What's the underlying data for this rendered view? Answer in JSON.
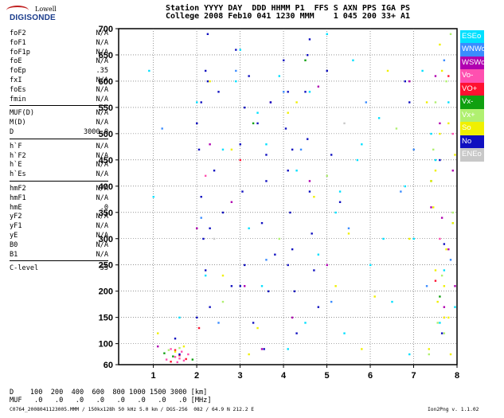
{
  "logo": {
    "line1": "Lowell",
    "line2": "DIGISONDE"
  },
  "header": {
    "row1": "Station YYYY DAY  DDD HHMM P1  FFS S AXN PPS IGA PS",
    "row2": "College 2008 Feb10 041 1230 MMM    1 045 200 33+ A1"
  },
  "params": {
    "g1": [
      [
        "foF2",
        "N/A"
      ],
      [
        "foF1",
        "N/A"
      ],
      [
        "foF1p",
        "N/A"
      ],
      [
        "foE",
        "N/A"
      ],
      [
        "foEp",
        ".35"
      ],
      [
        "fxI",
        "N/A"
      ],
      [
        "foEs",
        "N/A"
      ],
      [
        "fmin",
        "N/A"
      ]
    ],
    "g2": [
      [
        "MUF(D)",
        "N/A"
      ],
      [
        "M(D)",
        "N/A"
      ],
      [
        "D",
        "3000.0"
      ]
    ],
    "g3": [
      [
        "h`F",
        "N/A"
      ],
      [
        "h`F2",
        "N/A"
      ],
      [
        "h`E",
        "N/A"
      ],
      [
        "h`Es",
        "N/A"
      ]
    ],
    "g4": [
      [
        "hmF2",
        "N/A"
      ],
      [
        "hmF1",
        "N/A"
      ],
      [
        "hmE",
        ".0"
      ],
      [
        "yF2",
        "N/A"
      ],
      [
        "yF1",
        "N/A"
      ],
      [
        "yE",
        "N/A"
      ],
      [
        "B0",
        "N/A"
      ],
      [
        "B1",
        "N/A"
      ]
    ],
    "g5": [
      [
        "C-level",
        "55"
      ]
    ]
  },
  "legend": [
    {
      "label": "ESEo",
      "color": "#00e0ff"
    },
    {
      "label": "WNWo",
      "color": "#3a8cff"
    },
    {
      "label": "WSWo",
      "color": "#b000b0"
    },
    {
      "label": "Vo-",
      "color": "#ff50b0"
    },
    {
      "label": "VO+",
      "color": "#ff1030"
    },
    {
      "label": "Vx-",
      "color": "#10a010"
    },
    {
      "label": "Vx+",
      "color": "#b0f070"
    },
    {
      "label": "So",
      "color": "#f0f000"
    },
    {
      "label": "No",
      "color": "#1010c0"
    },
    {
      "label": "ENEo",
      "color": "#c8c8c8"
    }
  ],
  "bottom": {
    "row1": "D    100  200  400  600  800 1000 1500 3000 [km]",
    "row2": "MUF   .0   .0   .0   .0   .0   .0   .0   .0 [MHz]"
  },
  "footer": {
    "left": "C0764_2008041123005.MMM / 150kx128h 50 kHz 5.0 km / DGS-256  082 / 64.9 N 212.2 E",
    "right": "Ion2Png v. 1.1.02"
  },
  "chart_data": {
    "type": "scatter",
    "x_ticks": [
      1,
      2,
      3,
      4,
      5,
      6,
      7,
      8
    ],
    "y_ticks": [
      60,
      100,
      150,
      200,
      250,
      300,
      350,
      400,
      450,
      500,
      550,
      600,
      650,
      700
    ],
    "xlim": [
      0.2,
      8.0
    ],
    "ylim": [
      60,
      700
    ],
    "grid": true,
    "legend_position": "right",
    "series": [
      {
        "name": "ESEo",
        "color": "#00e0ff",
        "x": [
          0.9,
          1.0,
          1.6,
          2.0,
          2.2,
          2.6,
          3.0,
          3.2,
          3.4,
          3.5,
          3.9,
          4.1,
          4.3,
          4.6,
          4.8,
          5.0,
          5.2,
          5.4,
          5.6,
          5.8,
          6.0,
          6.2,
          6.5,
          6.8,
          7.0,
          7.2,
          7.5,
          7.6,
          7.8,
          7.9,
          3.6,
          4.5,
          5.3,
          6.9,
          7.7,
          2.9,
          5.7,
          6.3,
          7.4,
          7.95
        ],
        "y": [
          620,
          380,
          150,
          560,
          230,
          470,
          660,
          320,
          540,
          210,
          610,
          90,
          430,
          580,
          270,
          690,
          350,
          120,
          640,
          480,
          250,
          530,
          180,
          400,
          300,
          620,
          450,
          140,
          560,
          330,
          480,
          140,
          390,
          80,
          240,
          600,
          450,
          300,
          500,
          170
        ]
      },
      {
        "name": "WNWo",
        "color": "#3a8cff",
        "x": [
          1.2,
          2.1,
          2.9,
          3.6,
          4.4,
          5.1,
          5.9,
          6.7,
          7.3,
          7.7,
          2.5,
          4.0,
          5.5,
          7.0,
          7.85
        ],
        "y": [
          510,
          340,
          620,
          260,
          470,
          180,
          560,
          390,
          210,
          640,
          140,
          580,
          320,
          470,
          260
        ]
      },
      {
        "name": "WSWo",
        "color": "#b000b0",
        "x": [
          1.1,
          2.0,
          2.3,
          3.1,
          3.7,
          4.2,
          4.6,
          5.0,
          6.9,
          7.4,
          7.6,
          7.8,
          7.9,
          7.7,
          7.5,
          2.8,
          3.5,
          4.8,
          7.95,
          7.65
        ],
        "y": [
          95,
          320,
          480,
          210,
          560,
          150,
          410,
          250,
          600,
          360,
          520,
          280,
          430,
          170,
          610,
          370,
          90,
          590,
          210,
          340
        ]
      },
      {
        "name": "Vo-",
        "color": "#ff50b0",
        "x": [
          1.3,
          1.5,
          1.6,
          1.7,
          1.8,
          1.4,
          1.55,
          1.65,
          2.2,
          7.6,
          7.7,
          7.9
        ],
        "y": [
          70,
          75,
          72,
          68,
          80,
          90,
          65,
          85,
          420,
          300,
          150,
          500
        ]
      },
      {
        "name": "VO+",
        "color": "#ff1030",
        "x": [
          1.4,
          1.6,
          1.75,
          2.05,
          3.0,
          7.5,
          7.8,
          1.5
        ],
        "y": [
          66,
          78,
          71,
          130,
          450,
          220,
          610,
          88
        ]
      },
      {
        "name": "Vx-",
        "color": "#10a010",
        "x": [
          1.25,
          1.45,
          3.3,
          4.5,
          7.4,
          7.6,
          1.9
        ],
        "y": [
          82,
          76,
          520,
          640,
          410,
          190,
          70
        ]
      },
      {
        "name": "Vx+",
        "color": "#b0f070",
        "x": [
          1.35,
          1.6,
          2.6,
          3.9,
          5.0,
          6.6,
          7.35,
          7.55,
          7.75,
          7.9,
          7.45,
          7.65,
          7.85,
          7.5,
          7.7
        ],
        "y": [
          88,
          92,
          180,
          300,
          420,
          510,
          80,
          140,
          600,
          350,
          470,
          230,
          690,
          560,
          120
        ]
      },
      {
        "name": "So",
        "color": "#f0f000",
        "x": [
          1.1,
          1.5,
          1.7,
          2.3,
          2.8,
          3.4,
          4.1,
          4.7,
          5.2,
          5.8,
          6.4,
          6.9,
          7.3,
          7.4,
          7.5,
          7.6,
          7.7,
          7.8,
          7.9,
          7.95,
          7.35,
          7.55,
          7.65,
          7.85,
          7.45,
          7.75,
          7.6,
          7.8,
          7.5,
          7.7,
          5.5,
          4.3,
          6.1,
          3.2,
          2.6
        ],
        "y": [
          120,
          85,
          95,
          600,
          470,
          130,
          540,
          380,
          210,
          90,
          620,
          300,
          560,
          410,
          240,
          670,
          150,
          520,
          330,
          460,
          90,
          180,
          620,
          80,
          360,
          280,
          500,
          150,
          430,
          210,
          310,
          560,
          190,
          80,
          230
        ]
      },
      {
        "name": "No",
        "color": "#1010c0",
        "x": [
          1.5,
          1.6,
          2.0,
          2.05,
          2.1,
          2.15,
          2.2,
          2.25,
          2.3,
          2.4,
          2.5,
          2.6,
          2.8,
          2.9,
          3.0,
          3.05,
          3.1,
          3.2,
          3.3,
          3.4,
          3.5,
          3.6,
          3.65,
          3.7,
          3.8,
          4.0,
          4.05,
          4.1,
          4.15,
          4.2,
          4.25,
          4.3,
          4.5,
          4.55,
          4.6,
          4.65,
          4.7,
          4.8,
          5.0,
          5.1,
          5.3,
          6.8,
          6.9,
          7.6,
          7.7,
          2.0,
          2.1,
          2.2,
          2.3,
          3.0,
          3.1,
          3.6,
          4.1,
          4.2,
          4.6,
          7.65,
          2.25,
          3.55,
          4.1,
          4.55
        ],
        "y": [
          110,
          80,
          520,
          470,
          380,
          300,
          240,
          600,
          170,
          430,
          580,
          350,
          210,
          660,
          480,
          390,
          250,
          610,
          140,
          520,
          330,
          460,
          200,
          560,
          270,
          640,
          510,
          430,
          350,
          280,
          200,
          120,
          580,
          490,
          390,
          310,
          240,
          170,
          620,
          460,
          370,
          600,
          560,
          450,
          290,
          150,
          560,
          620,
          320,
          210,
          550,
          410,
          580,
          470,
          680,
          120,
          690,
          90,
          250,
          650
        ]
      },
      {
        "name": "ENEo",
        "color": "#c8c8c8",
        "x": [
          2.4,
          5.4,
          6.1
        ],
        "y": [
          300,
          520,
          200
        ]
      }
    ]
  }
}
